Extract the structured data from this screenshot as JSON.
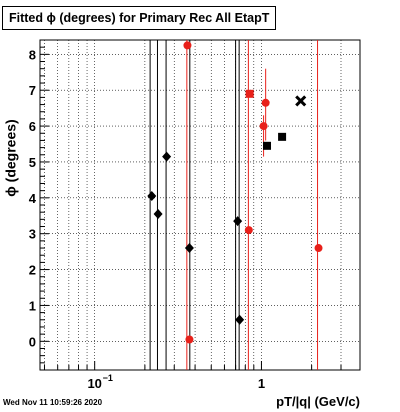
{
  "chart_data": {
    "type": "scatter",
    "title": "Fitted ϕ (degrees) for Primary Rec All EtapT",
    "xlabel": "pT/|q| (GeV/c)",
    "ylabel": "ϕ (degrees)",
    "timestamp": "Wed Nov 11 10:59:26 2020",
    "x_scale": "log",
    "xlim": [
      0.047,
      3.9
    ],
    "ylim": [
      -0.8,
      8.4
    ],
    "grid": true,
    "x_tick_labels": [
      {
        "value": 0.1,
        "label": "10",
        "exponent": "−1"
      },
      {
        "value": 1,
        "label": "1",
        "exponent": ""
      }
    ],
    "y_ticks": [
      0,
      1,
      2,
      3,
      4,
      5,
      6,
      7,
      8
    ],
    "series": [
      {
        "color": "#000000",
        "points": [
          {
            "x": 0.22,
            "y": 4.05,
            "marker": "diamond",
            "ylow": null,
            "yhigh": null
          },
          {
            "x": 0.24,
            "y": 3.55,
            "marker": "diamond",
            "ylow": null,
            "yhigh": null
          },
          {
            "x": 0.27,
            "y": 5.15,
            "marker": "diamond",
            "ylow": null,
            "yhigh": null
          },
          {
            "x": 0.37,
            "y": 2.6,
            "marker": "diamond",
            "ylow": null,
            "yhigh": null
          },
          {
            "x": 0.72,
            "y": 3.35,
            "marker": "diamond",
            "ylow": null,
            "yhigh": null
          },
          {
            "x": 0.74,
            "y": 0.6,
            "marker": "diamond",
            "ylow": null,
            "yhigh": null
          },
          {
            "x": 1.08,
            "y": 5.45,
            "marker": "square",
            "ylow": null,
            "yhigh": null
          },
          {
            "x": 1.33,
            "y": 5.7,
            "marker": "square",
            "ylow": null,
            "yhigh": null
          },
          {
            "x": 1.72,
            "y": 6.7,
            "marker": "cross",
            "ylow": null,
            "yhigh": null
          }
        ]
      },
      {
        "color": "#e8201a",
        "points": [
          {
            "x": 0.36,
            "y": 8.25,
            "marker": "circle",
            "ylow": null,
            "yhigh": null
          },
          {
            "x": 0.37,
            "y": 0.05,
            "marker": "circle",
            "ylow": null,
            "yhigh": null
          },
          {
            "x": 0.84,
            "y": 3.1,
            "marker": "circle",
            "ylow": null,
            "yhigh": null
          },
          {
            "x": 0.85,
            "y": 6.9,
            "marker": "square",
            "ylow": null,
            "yhigh": null
          },
          {
            "x": 1.03,
            "y": 6.0,
            "marker": "circle",
            "ylow": 5.15,
            "yhigh": 6.3
          },
          {
            "x": 1.06,
            "y": 6.65,
            "marker": "circle",
            "ylow": 5.6,
            "yhigh": 7.6
          },
          {
            "x": 2.2,
            "y": 2.6,
            "marker": "circle",
            "ylow": null,
            "yhigh": null
          }
        ]
      }
    ],
    "vertical_lines": [
      {
        "x": 0.215,
        "color": "#000000"
      },
      {
        "x": 0.238,
        "color": "#000000"
      },
      {
        "x": 0.268,
        "color": "#000000"
      },
      {
        "x": 0.357,
        "color": "#e8201a"
      },
      {
        "x": 0.372,
        "color": "#000000"
      },
      {
        "x": 0.7,
        "color": "#000000"
      },
      {
        "x": 0.735,
        "color": "#000000"
      },
      {
        "x": 0.835,
        "color": "#e8201a"
      },
      {
        "x": 2.17,
        "color": "#e8201a"
      }
    ]
  }
}
